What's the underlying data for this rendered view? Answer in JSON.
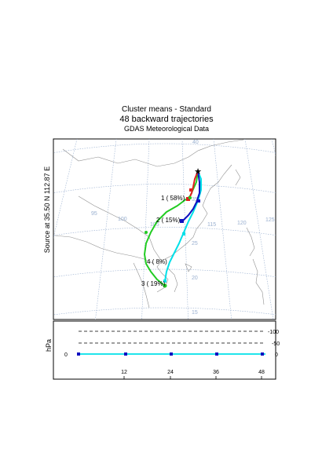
{
  "header": {
    "line1": "Cluster means - Standard",
    "line2": "48 backward trajectories",
    "line3": "GDAS Meteorological Data"
  },
  "source_label": "Source   at   35.50 N   112.87 E",
  "map": {
    "lon_labels": [
      "95",
      "100",
      "105",
      "115",
      "120",
      "125"
    ],
    "lat_labels": [
      "40",
      "35",
      "25",
      "20",
      "15"
    ],
    "cluster_labels": [
      "1 ( 58%)",
      "2 ( 15%)",
      "4 ( 8%)",
      "3 ( 19%)"
    ],
    "colors": {
      "cluster1": "#e02020",
      "cluster2": "#1010c0",
      "cluster3": "#22cc22",
      "cluster4": "#00e0e8",
      "grid": "#9ab0d0",
      "coast": "#909090"
    }
  },
  "vertical_panel": {
    "axis_title": "hPa",
    "pressure_labels": [
      "-100",
      "-50",
      "0"
    ],
    "left_zero": "0",
    "hour_ticks": [
      "12",
      "24",
      "36",
      "48"
    ]
  }
}
